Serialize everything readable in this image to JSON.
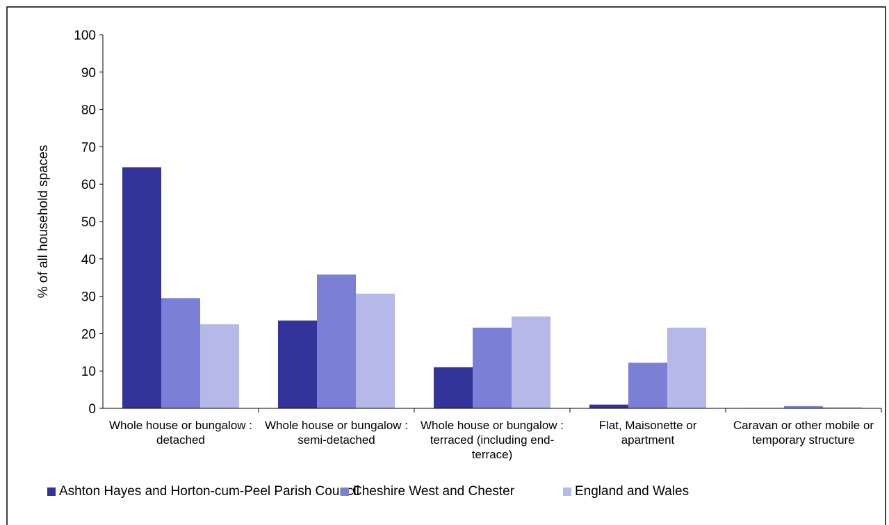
{
  "chart_data": {
    "type": "bar",
    "y_label": "% of all household spaces",
    "categories": [
      "Whole house or bungalow : detached",
      "Whole house or bungalow : semi-detached",
      "Whole house or bungalow : terraced (including end-terrace)",
      "Flat, Maisonette or apartment",
      "Caravan or other mobile or temporary structure"
    ],
    "series": [
      {
        "name": "Ashton Hayes and Horton-cum-Peel Parish Council",
        "color": "#333399",
        "values": [
          64.5,
          23.5,
          11,
          1,
          0.1
        ]
      },
      {
        "name": "Cheshire West and Chester",
        "color": "#7b7fd6",
        "values": [
          29.5,
          35.8,
          21.6,
          12.2,
          0.6
        ]
      },
      {
        "name": "England and Wales",
        "color": "#b6b8e8",
        "values": [
          22.5,
          30.7,
          24.6,
          21.6,
          0.3
        ]
      }
    ],
    "ylim": [
      0,
      100
    ],
    "yticks": [
      0,
      10,
      20,
      30,
      40,
      50,
      60,
      70,
      80,
      90,
      100
    ],
    "grid": false
  }
}
